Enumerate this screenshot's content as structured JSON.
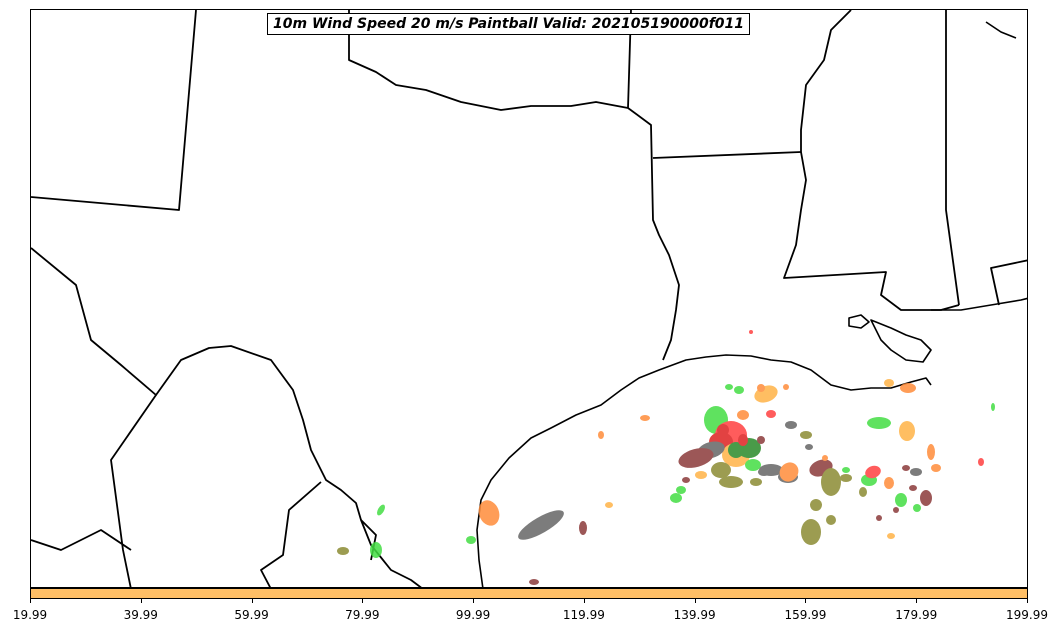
{
  "title": "10m Wind Speed 20 m/s Paintball Valid: 202105190000f011",
  "colorbar": {
    "color": "#ffbf66",
    "ticks": [
      "19.99",
      "39.99",
      "59.99",
      "79.99",
      "99.99",
      "119.99",
      "139.99",
      "159.99",
      "179.99",
      "199.99"
    ]
  },
  "member_colors": [
    "#44dd44",
    "#ff8c3a",
    "#666666",
    "#8b8b33",
    "#ff4040",
    "#ffb347",
    "#8b3a3a",
    "#cc9a2a",
    "#dd2222",
    "#2a8a2a"
  ],
  "map": {
    "region": "Texas and Gulf of Mexico",
    "line_color": "#000000"
  }
}
